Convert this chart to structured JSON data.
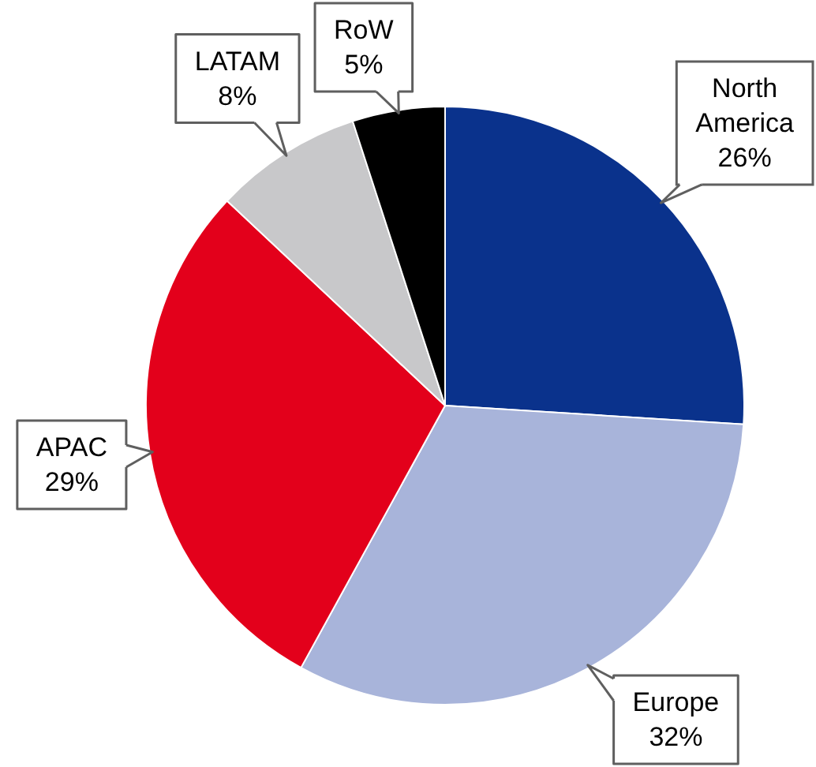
{
  "chart_data": {
    "type": "pie",
    "categories": [
      "North America",
      "Europe",
      "APAC",
      "LATAM",
      "RoW"
    ],
    "values": [
      26,
      32,
      29,
      8,
      5
    ],
    "colors": [
      "#0a328c",
      "#a8b4da",
      "#e3001b",
      "#c8c8ca",
      "#000000"
    ],
    "value_labels": [
      "26%",
      "32%",
      "29%",
      "8%",
      "5%"
    ],
    "legend": false
  }
}
